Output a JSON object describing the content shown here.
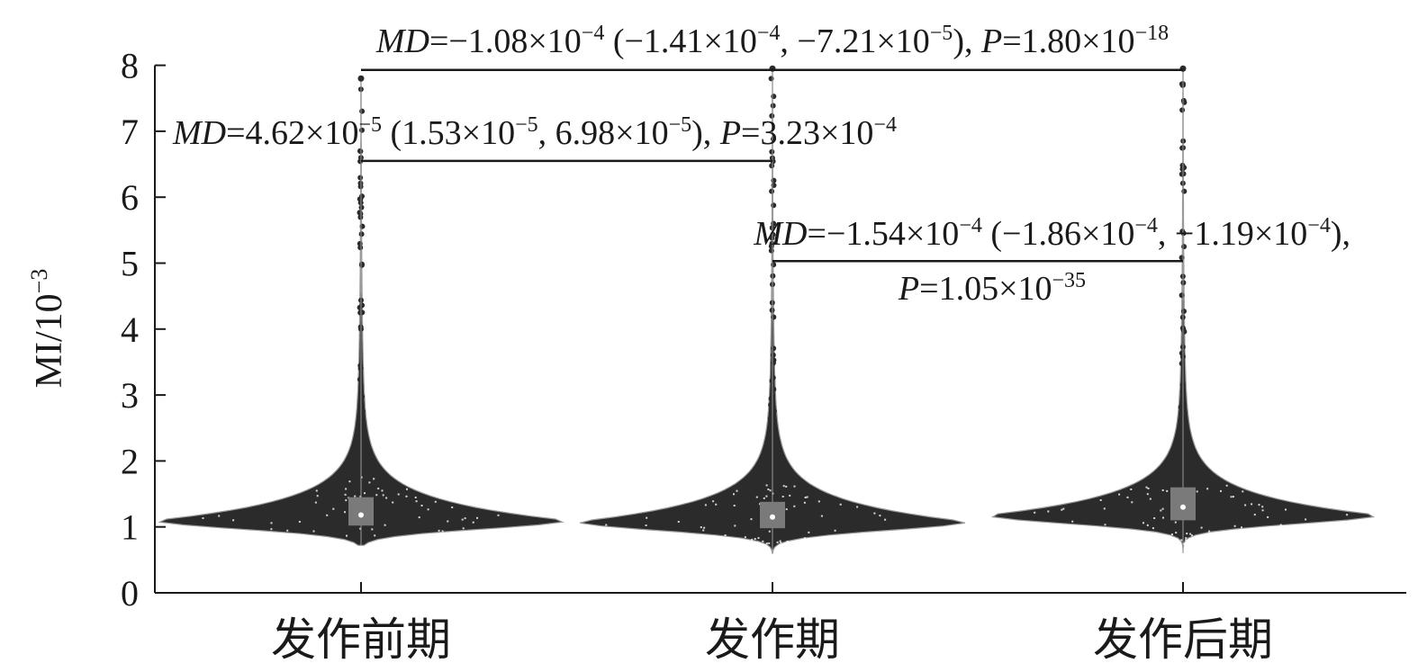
{
  "chart_data": {
    "type": "violin",
    "y_axis": {
      "label_text": "MI/10",
      "label_exponent": "−3",
      "ylim": [
        0,
        8
      ],
      "ticks": [
        "0",
        "1",
        "2",
        "3",
        "4",
        "5",
        "6",
        "7",
        "8"
      ]
    },
    "categories": [
      "发作前期",
      "发作期",
      "发作后期"
    ],
    "series": [
      {
        "median": 1.18,
        "q1": 1.02,
        "q3": 1.45,
        "min": 0.72,
        "max": 7.8,
        "peak_density_y": 1.1,
        "half_width_x": 1.0,
        "color": "#2b2b2b"
      },
      {
        "median": 1.15,
        "q1": 0.98,
        "q3": 1.38,
        "min": 0.6,
        "max": 7.95,
        "peak_density_y": 1.08,
        "half_width_x": 0.95,
        "color": "#2b2b2b"
      },
      {
        "median": 1.3,
        "q1": 1.1,
        "q3": 1.6,
        "min": 0.6,
        "max": 7.95,
        "peak_density_y": 1.18,
        "half_width_x": 0.95,
        "color": "#2b2b2b"
      }
    ],
    "comparisons": [
      {
        "from": 0,
        "to": 2,
        "y": 7.93,
        "md": "MD",
        "text": "=−1.08×10",
        "e1": "−4",
        "t2": " (−1.41×10",
        "e2": "−4",
        "t3": ", −7.21×10",
        "e3": "−5",
        "t4": "), ",
        "p": "P",
        "t5": "=1.80×10",
        "e4": "−18"
      },
      {
        "from": 0,
        "to": 1,
        "y": 6.55,
        "md": "MD",
        "text": "=4.62×10",
        "e1": "−5",
        "t2": " (1.53×10",
        "e2": "−5",
        "t3": ", 6.98×10",
        "e3": "−5",
        "t4": "), ",
        "p": "P",
        "t5": "=3.23×10",
        "e4": "−4"
      },
      {
        "from": 1,
        "to": 2,
        "y": 5.03,
        "md": "MD",
        "text": "=−1.54×10",
        "e1": "−4",
        "t2": " (−1.86×10",
        "e2": "−4",
        "t3": ", −1.19×10",
        "e3": "−4",
        "t4": "),",
        "p": "P",
        "t5": "=1.05×10",
        "e4": "−35"
      }
    ],
    "colors": {
      "violin": "#2b2b2b",
      "box": "#7a7a7a",
      "median": "#ffffff",
      "axis": "#1a1a1a"
    }
  }
}
